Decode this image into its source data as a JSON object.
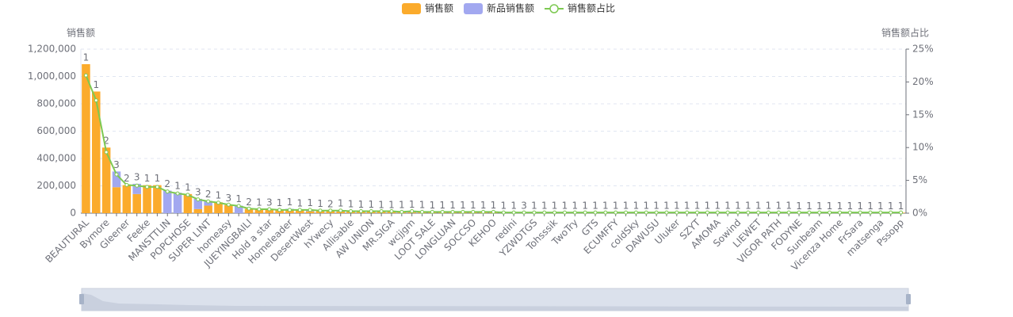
{
  "chart_data": {
    "type": "bar-line",
    "legend": "top",
    "y_axis_label": "销售额",
    "y2_axis_label": "销售额占比",
    "categories": [
      "BEAUTURAL",
      null,
      "Bymore",
      null,
      "Gleener",
      null,
      "Feeke",
      null,
      "MANSTTLIN",
      null,
      "POPCHOSE",
      null,
      "SUPER LINT",
      null,
      "homeasy",
      null,
      "JUEYINGBAILI",
      null,
      "Hold a star",
      null,
      "Homeleader",
      null,
      "DesertWest",
      null,
      "hYwecy",
      null,
      "Allisable",
      null,
      "AW UNION",
      null,
      "MR.SIGA",
      null,
      "wcjjgm",
      null,
      "LOOT SALE",
      null,
      "LONGLUAN",
      null,
      "SOCCSO",
      null,
      "KEHOO",
      null,
      "redini",
      null,
      "YZWDTGS",
      null,
      "Tohsssik",
      null,
      "TwoTry",
      null,
      "GTS",
      null,
      "ECUMFFY",
      null,
      "coldSky",
      null,
      "DAWUSU",
      null,
      "Uluker",
      null,
      "SZYT",
      null,
      "AMOMA",
      null,
      "Sowind",
      null,
      "LIEWET",
      null,
      "VIGOR PATH",
      null,
      "FODYNE",
      null,
      "Sunbeam",
      null,
      "Vicenza Home",
      null,
      "FrSara",
      null,
      "matsenga",
      null,
      "Pssopp"
    ],
    "series": [
      {
        "name": "销售额",
        "color": "#fbab2c",
        "kind": "bar",
        "values": [
          1090000,
          890000,
          480000,
          190000,
          205000,
          140000,
          205000,
          205000,
          0,
          0,
          140000,
          30000,
          55000,
          80000,
          60000,
          0,
          32000,
          30000,
          28000,
          26000,
          24000,
          22000,
          14000,
          20000,
          18000,
          12000,
          16000,
          15000,
          14000,
          13000,
          12000,
          12000,
          6000,
          11000,
          10000,
          10000,
          9000,
          9000,
          8000,
          8000,
          8000,
          7000,
          7000,
          7000,
          7000,
          7000,
          7000,
          7000,
          7000,
          7000,
          6000,
          6000,
          6000,
          6000,
          6000,
          6000,
          6000,
          6000,
          6000,
          6000,
          5000,
          5000,
          5000,
          5000,
          5000,
          5000,
          5000,
          5000,
          5000,
          5000,
          4000,
          4000,
          4000,
          4000,
          4000,
          4000,
          4000,
          4000,
          4000,
          4000,
          4000
        ]
      },
      {
        "name": "新品销售额",
        "color": "#a2a8f0",
        "kind": "bar",
        "values": [
          0,
          0,
          0,
          115000,
          0,
          75000,
          0,
          0,
          165000,
          150000,
          0,
          75000,
          35000,
          0,
          0,
          55000,
          0,
          0,
          0,
          0,
          8000,
          0,
          12000,
          0,
          0,
          10000,
          0,
          0,
          0,
          0,
          0,
          0,
          8000,
          0,
          0,
          0,
          0,
          0,
          0,
          0,
          0,
          0,
          0,
          0,
          0,
          0,
          0,
          0,
          0,
          0,
          0,
          0,
          0,
          0,
          0,
          0,
          0,
          0,
          0,
          0,
          0,
          0,
          0,
          0,
          0,
          0,
          0,
          0,
          0,
          0,
          0,
          0,
          0,
          0,
          0,
          0,
          0,
          0,
          0,
          0,
          0
        ]
      },
      {
        "name": "销售额占比",
        "color": "#7dc952",
        "kind": "line",
        "axis": "y2",
        "values": [
          21,
          17.2,
          9.3,
          5.9,
          4.3,
          4.2,
          4,
          4,
          3.3,
          3,
          2.8,
          2.1,
          1.8,
          1.6,
          1.3,
          1.1,
          0.7,
          0.6,
          0.6,
          0.5,
          0.5,
          0.5,
          0.5,
          0.4,
          0.4,
          0.4,
          0.3,
          0.3,
          0.3,
          0.3,
          0.3,
          0.2,
          0.3,
          0.2,
          0.2,
          0.2,
          0.2,
          0.2,
          0.2,
          0.2,
          0.2,
          0.1,
          0.1,
          0.1,
          0.1,
          0.1,
          0.1,
          0.1,
          0.1,
          0.1,
          0.1,
          0.1,
          0.1,
          0.1,
          0.1,
          0.1,
          0.1,
          0.1,
          0.1,
          0.1,
          0.1,
          0.1,
          0.1,
          0.1,
          0.1,
          0.1,
          0.1,
          0.1,
          0.1,
          0.1,
          0.1,
          0.1,
          0.1,
          0.1,
          0.1,
          0.1,
          0.1,
          0.1,
          0.1,
          0.1,
          0.1
        ]
      }
    ],
    "bar_labels": [
      1,
      1,
      2,
      3,
      2,
      3,
      1,
      1,
      2,
      1,
      1,
      3,
      2,
      1,
      3,
      1,
      2,
      1,
      3,
      1,
      1,
      1,
      1,
      1,
      2,
      1,
      1,
      1,
      1,
      1,
      1,
      1,
      1,
      1,
      1,
      1,
      1,
      1,
      1,
      1,
      1,
      1,
      1,
      3,
      1,
      1,
      1,
      1,
      1,
      1,
      1,
      1,
      1,
      1,
      1,
      1,
      1,
      1,
      1,
      1,
      1,
      1,
      1,
      1,
      1,
      1,
      1,
      1,
      1,
      1,
      1,
      1,
      1,
      1,
      1,
      1,
      1,
      1,
      1,
      1,
      1
    ],
    "ylim": [
      0,
      1200000
    ],
    "yticks": [
      0,
      {
        "value": 200000,
        "label": "200,000"
      },
      {
        "value": 400000,
        "label": "400,000"
      },
      {
        "value": 600000,
        "label": "600,000"
      },
      {
        "value": 800000,
        "label": "800,000"
      },
      {
        "value": 1000000,
        "label": "1,000,000"
      },
      {
        "value": 1200000,
        "label": "1,200,000"
      }
    ],
    "y2lim": [
      0,
      25
    ],
    "y2ticks": [
      {
        "value": 0,
        "label": "0%"
      },
      {
        "value": 5,
        "label": "5%"
      },
      {
        "value": 10,
        "label": "10%"
      },
      {
        "value": 15,
        "label": "15%"
      },
      {
        "value": 20,
        "label": "20%"
      },
      {
        "value": 25,
        "label": "25%"
      }
    ],
    "grid": true
  }
}
